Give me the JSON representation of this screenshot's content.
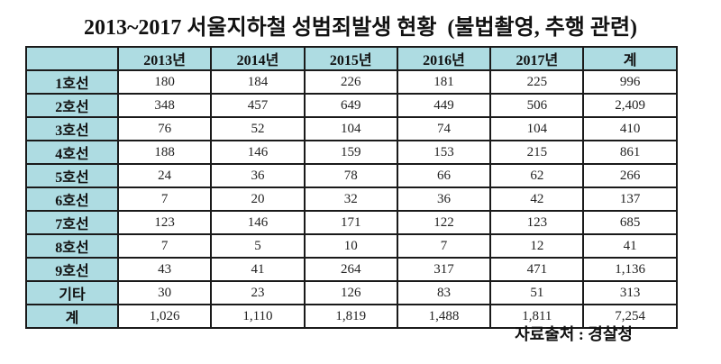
{
  "title": "2013~2017 서울지하철 성범죄발생 현황  (불법촬영, 추행 관련)",
  "source": "자료출처 : 경찰청",
  "colors": {
    "header_bg": "#aedce2",
    "border": "#1a1a1a",
    "background": "#ffffff"
  },
  "chart_data": {
    "type": "table",
    "title": "2013~2017 서울지하철 성범죄발생 현황 (불법촬영, 추행 관련)",
    "columns": [
      "",
      "2013년",
      "2014년",
      "2015년",
      "2016년",
      "2017년",
      "계"
    ],
    "rows": [
      {
        "label": "1호선",
        "values": [
          "180",
          "184",
          "226",
          "181",
          "225",
          "996"
        ]
      },
      {
        "label": "2호선",
        "values": [
          "348",
          "457",
          "649",
          "449",
          "506",
          "2,409"
        ]
      },
      {
        "label": "3호선",
        "values": [
          "76",
          "52",
          "104",
          "74",
          "104",
          "410"
        ]
      },
      {
        "label": "4호선",
        "values": [
          "188",
          "146",
          "159",
          "153",
          "215",
          "861"
        ]
      },
      {
        "label": "5호선",
        "values": [
          "24",
          "36",
          "78",
          "66",
          "62",
          "266"
        ]
      },
      {
        "label": "6호선",
        "values": [
          "7",
          "20",
          "32",
          "36",
          "42",
          "137"
        ]
      },
      {
        "label": "7호선",
        "values": [
          "123",
          "146",
          "171",
          "122",
          "123",
          "685"
        ]
      },
      {
        "label": "8호선",
        "values": [
          "7",
          "5",
          "10",
          "7",
          "12",
          "41"
        ]
      },
      {
        "label": "9호선",
        "values": [
          "43",
          "41",
          "264",
          "317",
          "471",
          "1,136"
        ]
      },
      {
        "label": "기타",
        "values": [
          "30",
          "23",
          "126",
          "83",
          "51",
          "313"
        ]
      },
      {
        "label": "계",
        "values": [
          "1,026",
          "1,110",
          "1,819",
          "1,488",
          "1,811",
          "7,254"
        ]
      }
    ],
    "source_note": "자료출처 : 경찰청",
    "legend_position": "none",
    "grid": true
  }
}
